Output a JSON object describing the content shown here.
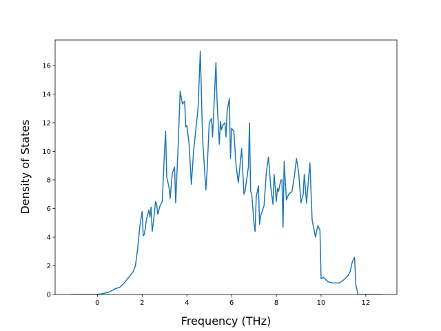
{
  "chart_data": {
    "type": "line",
    "x_label": "Frequency (THz)",
    "y_label": "Density of States",
    "color": "#1f77b4",
    "xlim": [
      -1.89,
      13.39
    ],
    "ylim": [
      0,
      17.78
    ],
    "xticks": [
      0,
      2,
      4,
      6,
      8,
      10,
      12
    ],
    "yticks": [
      0,
      2,
      4,
      6,
      8,
      10,
      12,
      14,
      16
    ],
    "x": [
      -1.2,
      0,
      0.2,
      0.5,
      0.8,
      1.0,
      1.2,
      1.4,
      1.6,
      1.7,
      1.8,
      1.9,
      2.0,
      2.05,
      2.1,
      2.2,
      2.3,
      2.35,
      2.4,
      2.45,
      2.5,
      2.6,
      2.65,
      2.7,
      2.8,
      2.9,
      3.0,
      3.05,
      3.1,
      3.2,
      3.25,
      3.35,
      3.45,
      3.5,
      3.6,
      3.7,
      3.8,
      3.9,
      3.95,
      4.0,
      4.1,
      4.2,
      4.3,
      4.5,
      4.6,
      4.7,
      4.8,
      4.85,
      4.9,
      5.0,
      5.1,
      5.15,
      5.3,
      5.35,
      5.45,
      5.5,
      5.55,
      5.6,
      5.7,
      5.75,
      5.8,
      5.9,
      5.95,
      6.0,
      6.1,
      6.2,
      6.3,
      6.45,
      6.55,
      6.6,
      6.75,
      6.8,
      6.85,
      6.9,
      7.0,
      7.05,
      7.1,
      7.2,
      7.25,
      7.3,
      7.45,
      7.55,
      7.65,
      7.75,
      7.85,
      7.9,
      8.0,
      8.05,
      8.1,
      8.2,
      8.25,
      8.3,
      8.35,
      8.45,
      8.55,
      8.7,
      8.8,
      8.9,
      9.0,
      9.1,
      9.2,
      9.25,
      9.35,
      9.5,
      9.6,
      9.75,
      9.85,
      9.95,
      10.0,
      10.1,
      10.3,
      10.5,
      10.8,
      11.0,
      11.2,
      11.3,
      11.4,
      11.5,
      11.55,
      11.65,
      12.0,
      12.7
    ],
    "values": [
      0,
      0,
      0.05,
      0.15,
      0.4,
      0.5,
      0.8,
      1.2,
      1.6,
      2.0,
      3.2,
      4.8,
      5.8,
      4.1,
      4.2,
      5.3,
      5.9,
      5.4,
      6.1,
      4.4,
      5.0,
      6.5,
      6.3,
      5.6,
      6.2,
      6.5,
      10.0,
      11.4,
      8.2,
      7.5,
      6.7,
      8.5,
      8.9,
      6.4,
      10.0,
      14.2,
      13.3,
      13.5,
      11.7,
      11.8,
      10.5,
      7.7,
      10.0,
      13.0,
      17.0,
      11.0,
      8.5,
      7.3,
      8.5,
      12.0,
      12.3,
      11.0,
      16.2,
      13.5,
      10.5,
      12.1,
      11.5,
      11.8,
      12.0,
      11.0,
      12.8,
      13.7,
      9.5,
      11.6,
      11.4,
      9.0,
      7.8,
      10.2,
      7.0,
      7.2,
      8.9,
      12.0,
      7.2,
      7.0,
      5.0,
      4.4,
      6.8,
      7.6,
      4.9,
      5.5,
      6.2,
      8.5,
      9.6,
      7.5,
      6.3,
      8.4,
      6.5,
      7.4,
      7.2,
      8.0,
      8.0,
      4.7,
      9.3,
      6.6,
      7.0,
      7.2,
      8.2,
      9.5,
      8.5,
      6.4,
      7.0,
      8.4,
      6.4,
      9.2,
      5.2,
      4.0,
      4.8,
      4.5,
      1.1,
      1.2,
      0.9,
      0.8,
      0.8,
      1.0,
      1.3,
      1.6,
      2.3,
      2.6,
      0.7,
      0,
      0,
      0
    ]
  }
}
